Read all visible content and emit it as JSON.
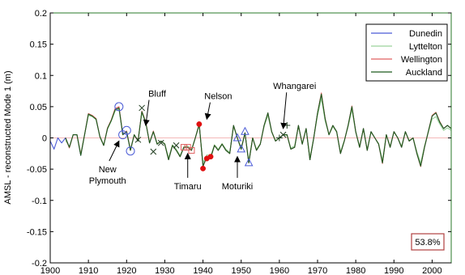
{
  "chart_data": {
    "type": "line",
    "title": "",
    "xlabel": "",
    "ylabel": "AMSL - reconstructed Mode 1 (m)",
    "xlim": [
      1900,
      2005
    ],
    "ylim": [
      -0.2,
      0.2
    ],
    "xticks": [
      "1900",
      "1910",
      "1920",
      "1930",
      "1940",
      "1950",
      "1960",
      "1970",
      "1980",
      "1990",
      "2000"
    ],
    "yticks": [
      "0.2",
      "0.15",
      "0.1",
      "0.05",
      "0",
      "-0.05",
      "-0.1",
      "-0.15",
      "-0.2"
    ],
    "grid": false,
    "legend_position": "top-right",
    "zero_line_color": "#f0a0a0",
    "series": [
      {
        "name": "Dunedin",
        "color": "#4b5bd6",
        "x": [
          1900,
          1901,
          1902,
          1903,
          1904,
          1905,
          1906,
          1907,
          1908,
          1909,
          1910,
          1911,
          1912,
          1913,
          1914,
          1915,
          1916,
          1917,
          1918,
          1919,
          1920,
          1921,
          1922,
          1923,
          1924,
          1925,
          1926,
          1927,
          1928,
          1929,
          1930,
          1931,
          1932,
          1933,
          1934,
          1935,
          1936,
          1937,
          1938,
          1939,
          1940,
          1941,
          1942,
          1943,
          1944,
          1945,
          1946,
          1947,
          1948,
          1949,
          1950,
          1951,
          1952,
          1953,
          1954,
          1955,
          1956,
          1957,
          1958,
          1959,
          1960,
          1961,
          1962,
          1963,
          1964,
          1965,
          1966,
          1967,
          1968,
          1969,
          1970,
          1971,
          1972,
          1973,
          1974,
          1975,
          1976,
          1977,
          1978,
          1979,
          1980,
          1981,
          1982,
          1983,
          1984,
          1985,
          1986,
          1987,
          1988,
          1989,
          1990,
          1991,
          1992,
          1993,
          1994,
          1995,
          1996,
          1997,
          1998,
          1999,
          2000,
          2001,
          2002,
          2003,
          2004,
          2005
        ],
        "values": [
          -0.005,
          -0.018,
          0.0,
          -0.008,
          0.0,
          -0.015,
          0.005,
          0.005,
          -0.028,
          0.005,
          0.038,
          0.035,
          0.03,
          0.002,
          -0.012,
          0.015,
          0.028,
          0.045,
          0.048,
          0.005,
          0.01,
          -0.02,
          0.005,
          -0.005,
          0.042,
          0.025,
          -0.008,
          0.01,
          -0.01,
          -0.005,
          -0.01,
          -0.035,
          -0.012,
          -0.02,
          -0.03,
          -0.015,
          -0.015,
          -0.02,
          0.0,
          0.022,
          -0.045,
          -0.03,
          -0.032,
          -0.012,
          -0.02,
          -0.01,
          -0.02,
          -0.025,
          0.02,
          0.0,
          -0.018,
          0.008,
          -0.04,
          0.0,
          -0.02,
          -0.01,
          0.02,
          0.04,
          0.01,
          -0.005,
          0.0,
          0.005,
          0.005,
          -0.018,
          -0.015,
          0.02,
          -0.01,
          0.015,
          -0.035,
          0.0,
          0.04,
          0.07,
          0.03,
          0.005,
          0.02,
          0.01,
          -0.025,
          -0.005,
          0.02,
          0.05,
          0.01,
          -0.015,
          0.015,
          -0.02,
          0.01,
          0.0,
          -0.01,
          -0.04,
          0.005,
          -0.015,
          0.01,
          0.0,
          -0.015,
          0.01,
          -0.005,
          0.0,
          -0.025,
          -0.045,
          -0.015,
          0.01,
          0.035,
          0.04,
          0.025,
          0.015,
          0.02,
          0.015
        ]
      },
      {
        "name": "Lyttelton",
        "color": "#9ad29a",
        "x": [
          1900,
          1901,
          1902,
          1903,
          1904,
          1905,
          1906,
          1907,
          1908,
          1909,
          1910,
          1911,
          1912,
          1913,
          1914,
          1915,
          1916,
          1917,
          1918,
          1919,
          1920,
          1921,
          1922,
          1923,
          1924,
          1925,
          1926,
          1927,
          1928,
          1929,
          1930,
          1931,
          1932,
          1933,
          1934,
          1935,
          1936,
          1937,
          1938,
          1939,
          1940,
          1941,
          1942,
          1943,
          1944,
          1945,
          1946,
          1947,
          1948,
          1949,
          1950,
          1951,
          1952,
          1953,
          1954,
          1955,
          1956,
          1957,
          1958,
          1959,
          1960,
          1961,
          1962,
          1963,
          1964,
          1965,
          1966,
          1967,
          1968,
          1969,
          1970,
          1971,
          1972,
          1973,
          1974,
          1975,
          1976,
          1977,
          1978,
          1979,
          1980,
          1981,
          1982,
          1983,
          1984,
          1985,
          1986,
          1987,
          1988,
          1989,
          1990,
          1991,
          1992,
          1993,
          1994,
          1995,
          1996,
          1997,
          1998,
          1999,
          2000,
          2001,
          2002,
          2003,
          2004,
          2005
        ],
        "values": [
          null,
          null,
          null,
          null,
          -0.004,
          -0.014,
          0.005,
          0.005,
          -0.025,
          0.005,
          0.036,
          0.034,
          0.029,
          0.003,
          -0.011,
          0.014,
          0.027,
          0.043,
          0.046,
          0.006,
          0.01,
          -0.018,
          0.005,
          -0.004,
          0.04,
          0.024,
          -0.007,
          0.01,
          -0.009,
          -0.005,
          -0.009,
          -0.032,
          -0.011,
          -0.018,
          -0.028,
          -0.014,
          -0.013,
          -0.018,
          0.0,
          0.02,
          -0.04,
          -0.027,
          -0.029,
          -0.011,
          -0.018,
          -0.009,
          -0.018,
          -0.023,
          0.018,
          0.0,
          -0.016,
          0.007,
          -0.036,
          0.0,
          -0.018,
          -0.009,
          0.018,
          0.036,
          0.009,
          -0.004,
          0.0,
          0.005,
          0.004,
          -0.016,
          -0.013,
          0.018,
          -0.009,
          0.014,
          -0.031,
          0.0,
          0.036,
          0.063,
          0.027,
          0.005,
          0.018,
          0.009,
          -0.022,
          -0.004,
          0.018,
          0.045,
          0.009,
          -0.013,
          0.013,
          -0.018,
          0.009,
          0.0,
          -0.009,
          -0.036,
          0.005,
          -0.013,
          0.009,
          0.0,
          -0.013,
          0.009,
          -0.004,
          0.0,
          -0.022,
          -0.04,
          -0.013,
          0.009,
          0.03,
          0.034,
          0.022,
          0.012,
          0.016,
          0.012
        ]
      },
      {
        "name": "Wellington",
        "color": "#e06060",
        "x": [
          1900,
          1901,
          1902,
          1903,
          1904,
          1905,
          1906,
          1907,
          1908,
          1909,
          1910,
          1911,
          1912,
          1913,
          1914,
          1915,
          1916,
          1917,
          1918,
          1919,
          1920,
          1921,
          1922,
          1923,
          1924,
          1925,
          1926,
          1927,
          1928,
          1929,
          1930,
          1931,
          1932,
          1933,
          1934,
          1935,
          1936,
          1937,
          1938,
          1939,
          1940,
          1941,
          1942,
          1943,
          1944,
          1945,
          1946,
          1947,
          1948,
          1949,
          1950,
          1951,
          1952,
          1953,
          1954,
          1955,
          1956,
          1957,
          1958,
          1959,
          1960,
          1961,
          1962,
          1963,
          1964,
          1965,
          1966,
          1967,
          1968,
          1969,
          1970,
          1971,
          1972,
          1973,
          1974,
          1975,
          1976,
          1977,
          1978,
          1979,
          1980,
          1981,
          1982,
          1983,
          1984,
          1985,
          1986,
          1987,
          1988,
          1989,
          1990,
          1991,
          1992,
          1993,
          1994,
          1995,
          1996,
          1997,
          1998,
          1999,
          2000,
          2001,
          2002,
          2003,
          2004,
          2005
        ],
        "values": [
          null,
          null,
          null,
          null,
          0.0,
          -0.016,
          0.005,
          0.005,
          -0.027,
          0.005,
          0.039,
          0.036,
          0.031,
          0.002,
          -0.012,
          0.016,
          0.029,
          0.047,
          0.05,
          0.005,
          0.011,
          -0.02,
          0.005,
          -0.005,
          0.043,
          0.026,
          -0.008,
          0.011,
          -0.01,
          -0.005,
          -0.01,
          -0.035,
          -0.012,
          -0.02,
          -0.03,
          -0.015,
          -0.015,
          -0.02,
          0.0,
          0.022,
          -0.046,
          -0.031,
          -0.033,
          -0.012,
          -0.02,
          -0.01,
          -0.02,
          -0.025,
          0.02,
          0.0,
          -0.018,
          0.008,
          -0.04,
          0.0,
          -0.02,
          -0.01,
          0.02,
          0.04,
          0.01,
          -0.005,
          0.0,
          0.005,
          0.005,
          -0.018,
          -0.015,
          0.02,
          -0.01,
          0.015,
          -0.035,
          0.0,
          0.04,
          0.072,
          0.031,
          0.005,
          0.02,
          0.01,
          -0.025,
          -0.005,
          0.02,
          0.051,
          0.01,
          -0.015,
          0.015,
          -0.02,
          0.01,
          0.0,
          -0.01,
          -0.041,
          0.005,
          -0.015,
          0.01,
          0.0,
          -0.015,
          0.01,
          -0.005,
          0.0,
          -0.025,
          -0.046,
          -0.015,
          0.01,
          0.036,
          0.041,
          0.026,
          0.015,
          0.02,
          0.015
        ]
      },
      {
        "name": "Auckland",
        "color": "#1d5a1d",
        "x": [
          1900,
          1901,
          1902,
          1903,
          1904,
          1905,
          1906,
          1907,
          1908,
          1909,
          1910,
          1911,
          1912,
          1913,
          1914,
          1915,
          1916,
          1917,
          1918,
          1919,
          1920,
          1921,
          1922,
          1923,
          1924,
          1925,
          1926,
          1927,
          1928,
          1929,
          1930,
          1931,
          1932,
          1933,
          1934,
          1935,
          1936,
          1937,
          1938,
          1939,
          1940,
          1941,
          1942,
          1943,
          1944,
          1945,
          1946,
          1947,
          1948,
          1949,
          1950,
          1951,
          1952,
          1953,
          1954,
          1955,
          1956,
          1957,
          1958,
          1959,
          1960,
          1961,
          1962,
          1963,
          1964,
          1965,
          1966,
          1967,
          1968,
          1969,
          1970,
          1971,
          1972,
          1973,
          1974,
          1975,
          1976,
          1977,
          1978,
          1979,
          1980,
          1981,
          1982,
          1983,
          1984,
          1985,
          1986,
          1987,
          1988,
          1989,
          1990,
          1991,
          1992,
          1993,
          1994,
          1995,
          1996,
          1997,
          1998,
          1999,
          2000,
          2001,
          2002,
          2003,
          2004,
          2005
        ],
        "values": [
          null,
          null,
          null,
          null,
          0.0,
          -0.015,
          0.005,
          0.005,
          -0.028,
          0.005,
          0.038,
          0.035,
          0.03,
          0.002,
          -0.012,
          0.015,
          0.028,
          0.045,
          0.048,
          0.005,
          0.01,
          -0.02,
          0.005,
          -0.005,
          0.042,
          0.025,
          -0.008,
          0.01,
          -0.01,
          -0.005,
          -0.01,
          -0.035,
          -0.012,
          -0.02,
          -0.03,
          -0.015,
          -0.015,
          -0.02,
          0.0,
          0.022,
          -0.045,
          -0.03,
          -0.032,
          -0.012,
          -0.02,
          -0.01,
          -0.02,
          -0.025,
          0.02,
          0.0,
          -0.018,
          0.008,
          -0.04,
          0.0,
          -0.02,
          -0.01,
          0.02,
          0.04,
          0.01,
          -0.005,
          0.0,
          0.005,
          0.005,
          -0.018,
          -0.015,
          0.02,
          -0.01,
          0.015,
          -0.035,
          0.0,
          0.04,
          0.07,
          0.03,
          0.005,
          0.02,
          0.01,
          -0.025,
          -0.005,
          0.02,
          0.05,
          0.01,
          -0.015,
          0.015,
          -0.02,
          0.01,
          0.0,
          -0.01,
          -0.04,
          0.005,
          -0.015,
          0.01,
          0.0,
          -0.015,
          0.01,
          -0.005,
          0.0,
          -0.025,
          -0.045,
          -0.015,
          0.01,
          0.035,
          0.04,
          0.025,
          0.015,
          0.02,
          0.015
        ]
      }
    ],
    "markers": [
      {
        "station": "New Plymouth",
        "shape": "circle",
        "color": "#4b5bd6",
        "x": 1918,
        "y": 0.05
      },
      {
        "station": "New Plymouth",
        "shape": "circle",
        "color": "#4b5bd6",
        "x": 1919,
        "y": 0.005
      },
      {
        "station": "New Plymouth",
        "shape": "circle",
        "color": "#4b5bd6",
        "x": 1920,
        "y": 0.012
      },
      {
        "station": "New Plymouth",
        "shape": "circle",
        "color": "#4b5bd6",
        "x": 1921,
        "y": -0.021
      },
      {
        "station": "Bluff",
        "shape": "x",
        "color": "#1d3a1d",
        "x": 1923,
        "y": -0.003
      },
      {
        "station": "Bluff",
        "shape": "x",
        "color": "#1d3a1d",
        "x": 1924,
        "y": 0.048
      },
      {
        "station": "Bluff",
        "shape": "x",
        "color": "#1d3a1d",
        "x": 1927,
        "y": -0.022
      },
      {
        "station": "Bluff",
        "shape": "x",
        "color": "#1d3a1d",
        "x": 1929,
        "y": -0.008
      },
      {
        "station": "Bluff",
        "shape": "x",
        "color": "#1d3a1d",
        "x": 1933,
        "y": -0.012
      },
      {
        "station": "Timaru",
        "shape": "square",
        "color": "#e06060",
        "x": 1935,
        "y": -0.015
      },
      {
        "station": "Timaru",
        "shape": "square",
        "color": "#e06060",
        "x": 1936,
        "y": -0.015
      },
      {
        "station": "Timaru",
        "shape": "square",
        "color": "#e06060",
        "x": 1937,
        "y": -0.02
      },
      {
        "station": "Nelson",
        "shape": "dot",
        "color": "#e01010",
        "x": 1939,
        "y": 0.022
      },
      {
        "station": "Nelson",
        "shape": "dot",
        "color": "#e01010",
        "x": 1940,
        "y": -0.049
      },
      {
        "station": "Nelson",
        "shape": "dot",
        "color": "#e01010",
        "x": 1941,
        "y": -0.033
      },
      {
        "station": "Nelson",
        "shape": "dot",
        "color": "#e01010",
        "x": 1942,
        "y": -0.03
      },
      {
        "station": "Moturiki",
        "shape": "triangle",
        "color": "#4b5bd6",
        "x": 1949,
        "y": 0.0
      },
      {
        "station": "Moturiki",
        "shape": "triangle",
        "color": "#4b5bd6",
        "x": 1950,
        "y": -0.018
      },
      {
        "station": "Moturiki",
        "shape": "triangle",
        "color": "#4b5bd6",
        "x": 1951,
        "y": 0.01
      },
      {
        "station": "Moturiki",
        "shape": "triangle",
        "color": "#4b5bd6",
        "x": 1952,
        "y": -0.04
      },
      {
        "station": "Whangarei",
        "shape": "plus",
        "color": "#1d3a1d",
        "x": 1960,
        "y": 0.0
      },
      {
        "station": "Whangarei",
        "shape": "x",
        "color": "#1d3a1d",
        "x": 1961,
        "y": 0.005
      },
      {
        "station": "Whangarei",
        "shape": "plus",
        "color": "#1d3a1d",
        "x": 1962,
        "y": 0.02
      }
    ],
    "annotations": [
      {
        "text": "Bluff",
        "text_x": 1928,
        "text_y": 0.066,
        "arrow_to_x": 1925,
        "arrow_to_y": 0.02
      },
      {
        "text": "Nelson",
        "text_x": 1944,
        "text_y": 0.062,
        "arrow_to_x": 1941,
        "arrow_to_y": 0.03
      },
      {
        "text": "Whangarei",
        "text_x": 1964,
        "text_y": 0.078,
        "arrow_to_x": 1961,
        "arrow_to_y": 0.015
      },
      {
        "text": "New Plymouth",
        "text_x": 1915,
        "text_y": -0.055,
        "arrow_to_x": 1918,
        "arrow_to_y": -0.005
      },
      {
        "text": "Timaru",
        "text_x": 1936,
        "text_y": -0.082,
        "arrow_to_x": 1936,
        "arrow_to_y": -0.025
      },
      {
        "text": "Moturiki",
        "text_x": 1949,
        "text_y": -0.082,
        "arrow_to_x": 1949,
        "arrow_to_y": -0.03
      }
    ],
    "note": "53.8%"
  }
}
